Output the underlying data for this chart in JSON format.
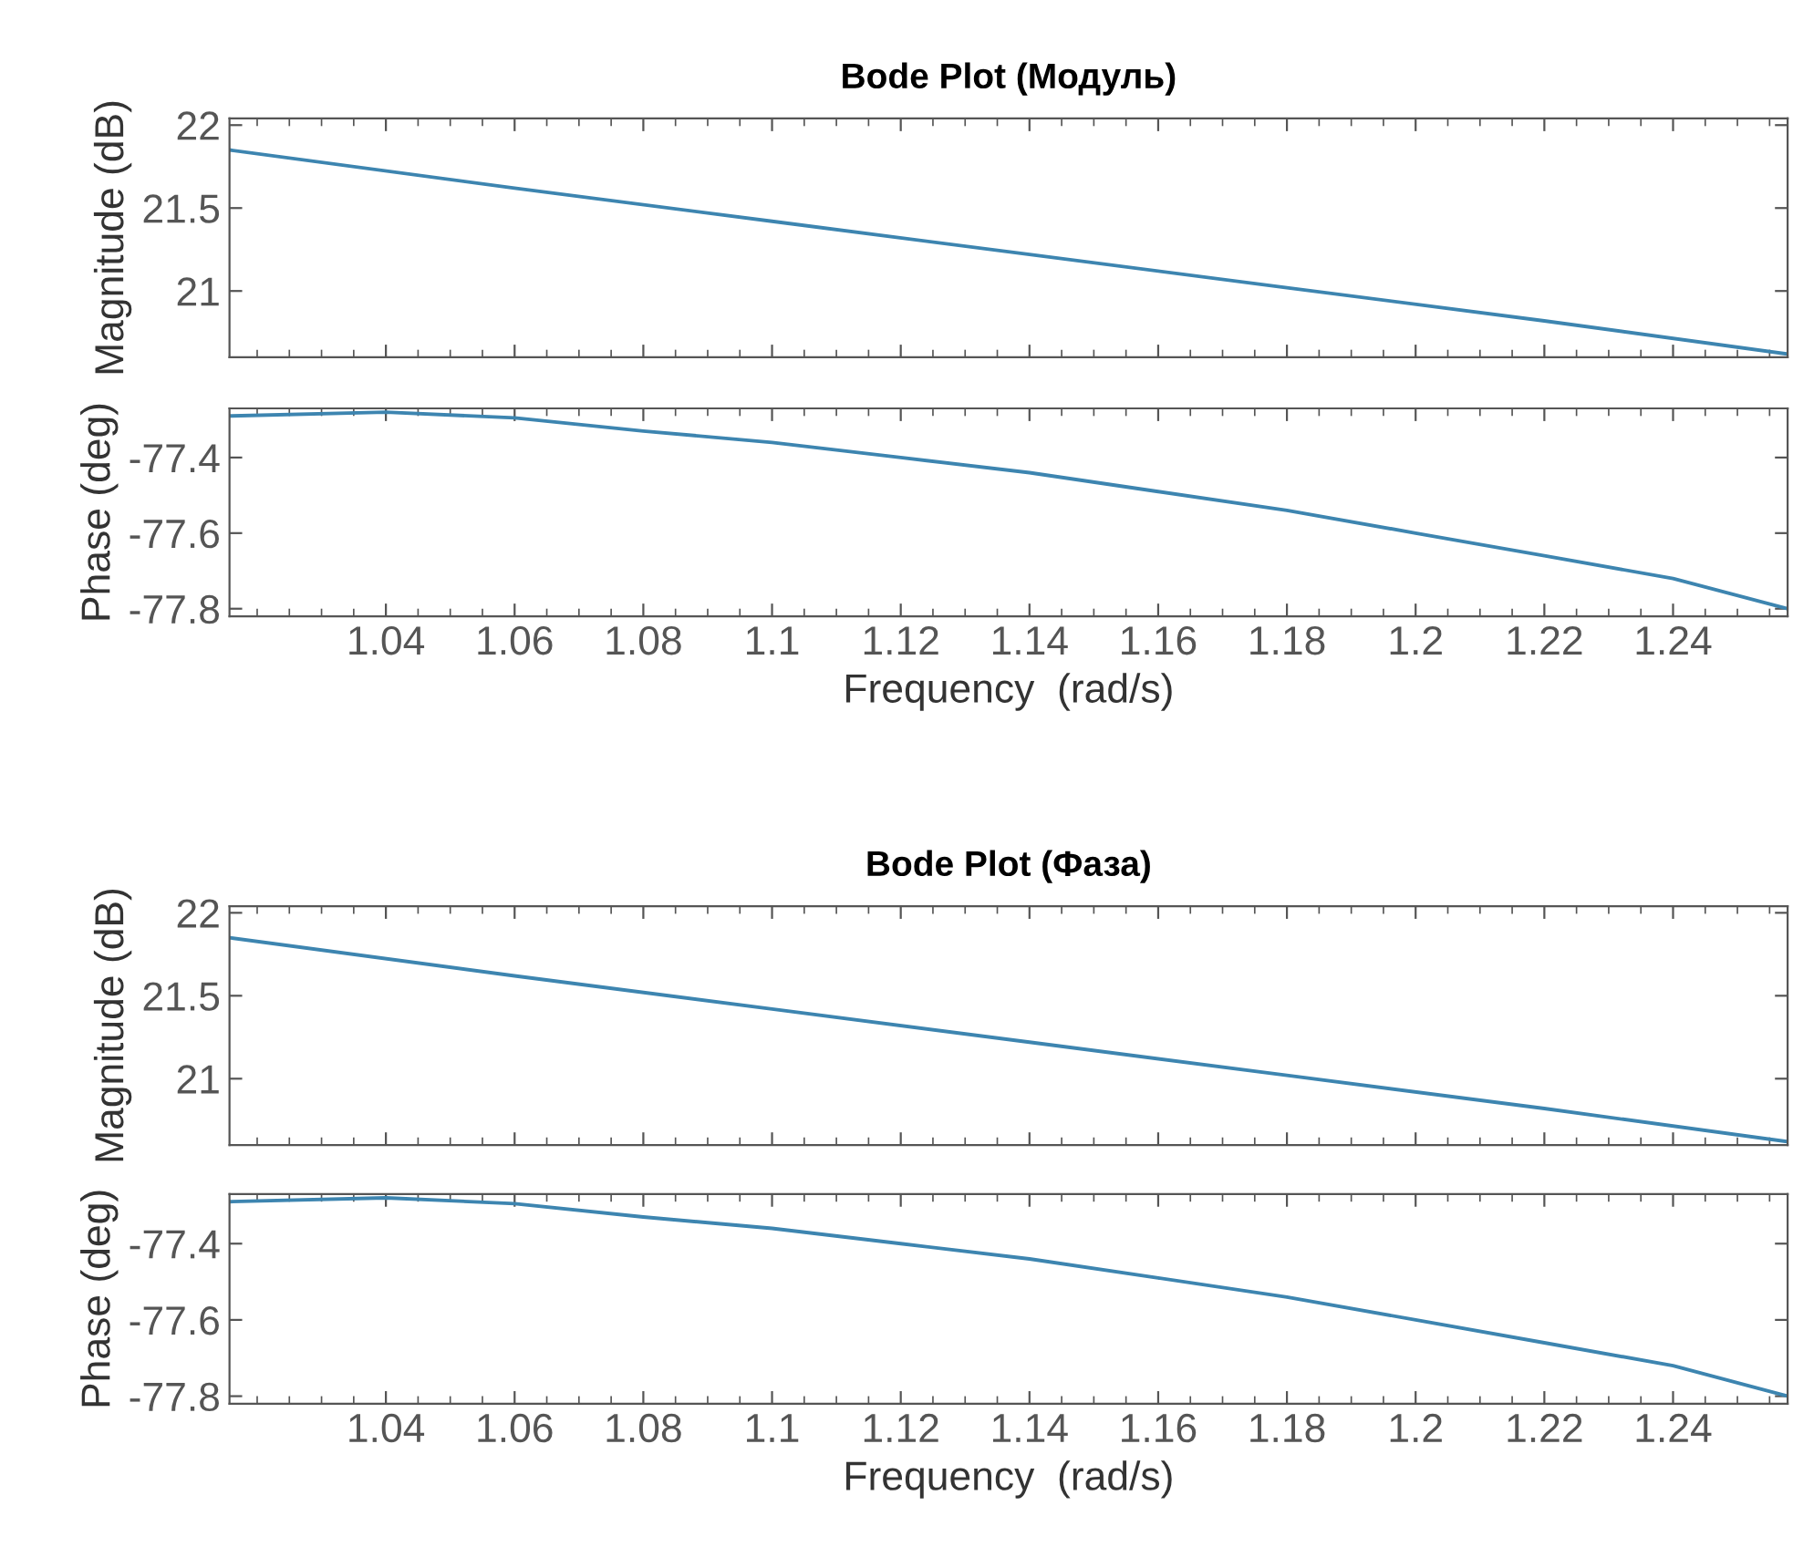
{
  "chart_data": [
    {
      "type": "line",
      "title": "Bode Plot (Модуль)",
      "ylabel": "Magnitude (dB)",
      "tick_labels": "y",
      "x": [
        1.0157,
        1.06,
        1.1,
        1.14,
        1.18,
        1.22,
        1.2578
      ],
      "series": [
        {
          "color": "#3d85b0",
          "values": [
            21.85,
            21.62,
            21.42,
            21.22,
            21.02,
            20.82,
            20.62
          ]
        }
      ],
      "xlim": [
        1.0157,
        1.2578
      ],
      "xticks": [
        1.04,
        1.06,
        1.08,
        1.1,
        1.12,
        1.14,
        1.16,
        1.18,
        1.2,
        1.22,
        1.24
      ],
      "ylim": [
        20.6,
        22.04
      ],
      "yticks": [
        21,
        21.5,
        22
      ],
      "grid": false,
      "legend": false,
      "marker": "none",
      "line_style": "solid"
    },
    {
      "type": "line",
      "xlabel": "Frequency  (rad/s)",
      "ylabel": "Phase (deg)",
      "x": [
        1.0157,
        1.04,
        1.06,
        1.08,
        1.1,
        1.12,
        1.14,
        1.16,
        1.18,
        1.2,
        1.22,
        1.24,
        1.2578
      ],
      "series": [
        {
          "color": "#3d85b0",
          "values": [
            -77.29,
            -77.28,
            -77.295,
            -77.33,
            -77.36,
            -77.4,
            -77.44,
            -77.49,
            -77.54,
            -77.6,
            -77.66,
            -77.72,
            -77.8
          ]
        }
      ],
      "xlim": [
        1.0157,
        1.2578
      ],
      "xticks": [
        1.04,
        1.06,
        1.08,
        1.1,
        1.12,
        1.14,
        1.16,
        1.18,
        1.2,
        1.22,
        1.24
      ],
      "ylim": [
        -77.82,
        -77.27
      ],
      "yticks": [
        -77.8,
        -77.6,
        -77.4
      ],
      "grid": false,
      "legend": false,
      "marker": "none",
      "line_style": "solid"
    },
    {
      "type": "line",
      "title": "Bode Plot (Фаза)",
      "ylabel": "Magnitude (dB)",
      "tick_labels": "y",
      "x": [
        1.0157,
        1.06,
        1.1,
        1.14,
        1.18,
        1.22,
        1.2578
      ],
      "series": [
        {
          "color": "#3d85b0",
          "values": [
            21.85,
            21.62,
            21.42,
            21.22,
            21.02,
            20.82,
            20.62
          ]
        }
      ],
      "xlim": [
        1.0157,
        1.2578
      ],
      "xticks": [
        1.04,
        1.06,
        1.08,
        1.1,
        1.12,
        1.14,
        1.16,
        1.18,
        1.2,
        1.22,
        1.24
      ],
      "ylim": [
        20.6,
        22.04
      ],
      "yticks": [
        21,
        21.5,
        22
      ],
      "grid": false,
      "legend": false,
      "marker": "none",
      "line_style": "solid"
    },
    {
      "type": "line",
      "xlabel": "Frequency  (rad/s)",
      "ylabel": "Phase (deg)",
      "x": [
        1.0157,
        1.04,
        1.06,
        1.08,
        1.1,
        1.12,
        1.14,
        1.16,
        1.18,
        1.2,
        1.22,
        1.24,
        1.2578
      ],
      "series": [
        {
          "color": "#3d85b0",
          "values": [
            -77.29,
            -77.28,
            -77.295,
            -77.33,
            -77.36,
            -77.4,
            -77.44,
            -77.49,
            -77.54,
            -77.6,
            -77.66,
            -77.72,
            -77.8
          ]
        }
      ],
      "xlim": [
        1.0157,
        1.2578
      ],
      "xticks": [
        1.04,
        1.06,
        1.08,
        1.1,
        1.12,
        1.14,
        1.16,
        1.18,
        1.2,
        1.22,
        1.24
      ],
      "ylim": [
        -77.82,
        -77.27
      ],
      "yticks": [
        -77.8,
        -77.6,
        -77.4
      ],
      "grid": false,
      "legend": false,
      "marker": "none",
      "line_style": "solid"
    }
  ]
}
